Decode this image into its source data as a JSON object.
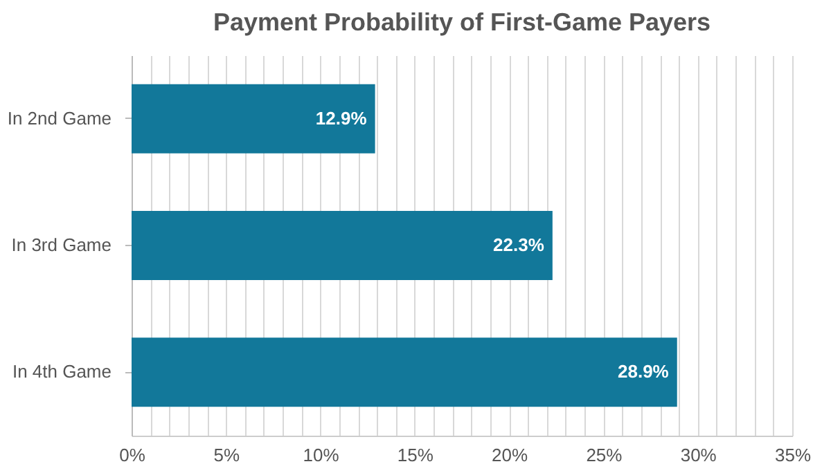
{
  "chart_data": {
    "type": "bar",
    "orientation": "horizontal",
    "title": "Payment Probability of First-Game Payers",
    "categories": [
      "In 2nd Game",
      "In 3rd Game",
      "In 4th Game"
    ],
    "values": [
      12.9,
      22.3,
      28.9
    ],
    "value_labels": [
      "12.9%",
      "22.3%",
      "28.9%"
    ],
    "color": "#12789a",
    "xlim": [
      0,
      35
    ],
    "xticks": [
      {
        "value": 0,
        "label": "0%"
      },
      {
        "value": 1,
        "label": null
      },
      {
        "value": 2,
        "label": null
      },
      {
        "value": 3,
        "label": null
      },
      {
        "value": 4,
        "label": null
      },
      {
        "value": 5,
        "label": "5%"
      },
      {
        "value": 6,
        "label": null
      },
      {
        "value": 7,
        "label": null
      },
      {
        "value": 8,
        "label": null
      },
      {
        "value": 9,
        "label": null
      },
      {
        "value": 10,
        "label": "10%"
      },
      {
        "value": 11,
        "label": null
      },
      {
        "value": 12,
        "label": null
      },
      {
        "value": 13,
        "label": null
      },
      {
        "value": 14,
        "label": null
      },
      {
        "value": 15,
        "label": "15%"
      },
      {
        "value": 16,
        "label": null
      },
      {
        "value": 17,
        "label": null
      },
      {
        "value": 18,
        "label": null
      },
      {
        "value": 19,
        "label": null
      },
      {
        "value": 20,
        "label": "20%"
      },
      {
        "value": 21,
        "label": null
      },
      {
        "value": 22,
        "label": null
      },
      {
        "value": 23,
        "label": null
      },
      {
        "value": 24,
        "label": null
      },
      {
        "value": 25,
        "label": "25%"
      },
      {
        "value": 26,
        "label": null
      },
      {
        "value": 27,
        "label": null
      },
      {
        "value": 28,
        "label": null
      },
      {
        "value": 29,
        "label": null
      },
      {
        "value": 30,
        "label": "30%"
      },
      {
        "value": 31,
        "label": null
      },
      {
        "value": 32,
        "label": null
      },
      {
        "value": 33,
        "label": null
      },
      {
        "value": 34,
        "label": null
      },
      {
        "value": 35,
        "label": "35%"
      }
    ],
    "grid": "x"
  }
}
